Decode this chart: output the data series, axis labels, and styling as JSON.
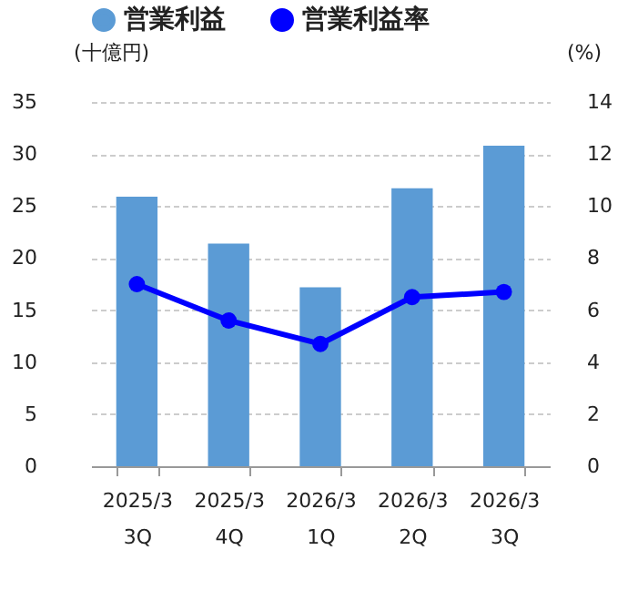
{
  "chart_data": {
    "type": "bar",
    "ylabel": "(十億円)",
    "y2label": "(%)",
    "categories": [
      "2025/3\n3Q",
      "2025/3\n4Q",
      "2026/3\n1Q",
      "2026/3\n2Q",
      "2026/3\n3Q"
    ],
    "series": [
      {
        "name": "営業利益",
        "color": "#5b9bd5",
        "values": [
          25.9,
          21.4,
          17.2,
          26.7,
          30.8
        ]
      },
      {
        "name": "営業利益率",
        "type": "line",
        "axis": "y2",
        "color": "#0000ff",
        "marker": "circle",
        "values": [
          7.0,
          5.6,
          4.7,
          6.5,
          6.7
        ]
      }
    ],
    "ylim": [
      0,
      35
    ],
    "yticks": [
      0,
      5,
      10,
      15,
      20,
      25,
      30,
      35
    ],
    "y2lim": [
      0,
      14
    ],
    "y2ticks": [
      0,
      2,
      4,
      6,
      8,
      10,
      12,
      14
    ],
    "grid": "y",
    "legend": "top"
  }
}
